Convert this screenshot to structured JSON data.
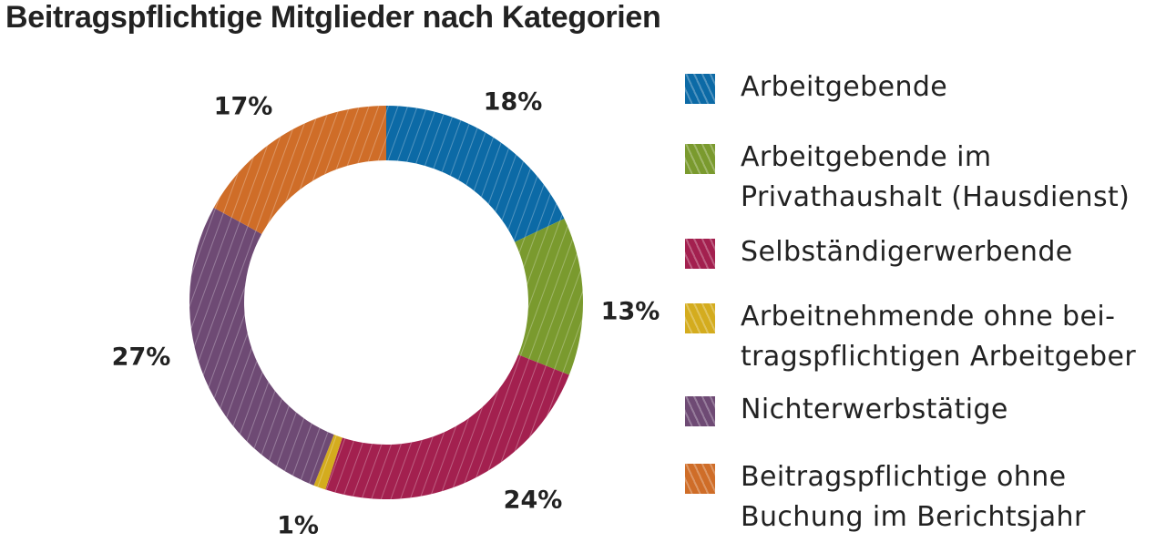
{
  "chart_data": {
    "type": "pie",
    "title": "Beitragspflichtige Mitglieder nach Kategorien",
    "categories": [
      "Arbeitgebende",
      "Arbeitgebende im\nPrivathaushalt (Hausdienst)",
      "Selbständigerwerbende",
      "Arbeitnehmende ohne bei-\ntragspflichtigen Arbeitgeber",
      "Nichterwerbstätige",
      "Beitragspflichtige ohne\nBuchung im Berichtsjahr"
    ],
    "values": [
      18,
      13,
      24,
      1,
      27,
      17
    ],
    "value_labels": [
      "18%",
      "13%",
      "24%",
      "1%",
      "27%",
      "17%"
    ],
    "colors": [
      "#0c6aa6",
      "#7a9a2e",
      "#a3204f",
      "#d4ac1e",
      "#6e4a74",
      "#cf6d28"
    ],
    "donut": true,
    "legend_position": "right",
    "pattern": "diagonal-hatch"
  }
}
